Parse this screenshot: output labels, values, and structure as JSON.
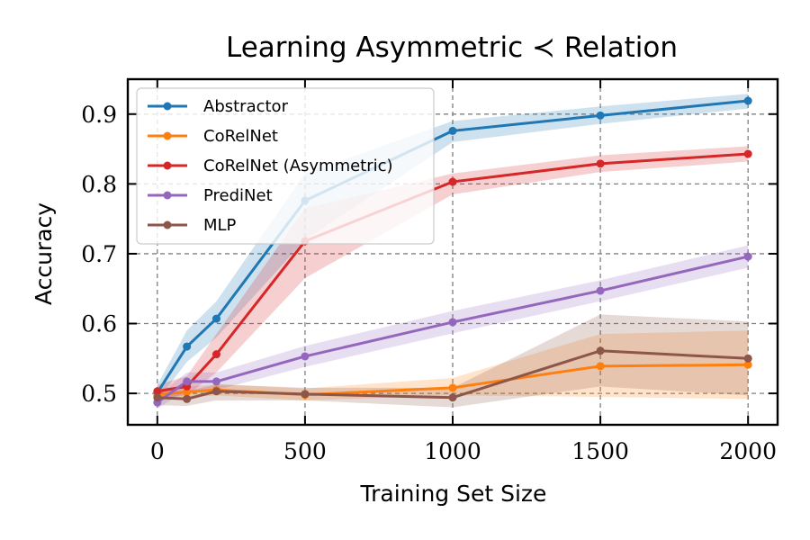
{
  "chart_data": {
    "type": "line",
    "title": "Learning Asymmetric ≺ Relation",
    "xlabel": "Training Set Size",
    "ylabel": "Accuracy",
    "xlim": [
      -100,
      2100
    ],
    "ylim": [
      0.455,
      0.95
    ],
    "xticks": [
      0,
      500,
      1000,
      1500,
      2000
    ],
    "xtick_labels": [
      "0",
      "500",
      "1000",
      "1500",
      "2000"
    ],
    "yticks": [
      0.5,
      0.6,
      0.7,
      0.8,
      0.9
    ],
    "ytick_labels": [
      "0.5",
      "0.6",
      "0.7",
      "0.8",
      "0.9"
    ],
    "grid": true,
    "legend_position": "top-left",
    "x": [
      0,
      100,
      200,
      500,
      1000,
      1500,
      2000
    ],
    "series": [
      {
        "name": "Abstractor",
        "color": "#1f77b4",
        "values": [
          0.501,
          0.567,
          0.607,
          0.776,
          0.876,
          0.898,
          0.919
        ],
        "lower": [
          0.49,
          0.545,
          0.58,
          0.72,
          0.86,
          0.886,
          0.908
        ],
        "upper": [
          0.512,
          0.59,
          0.632,
          0.815,
          0.89,
          0.911,
          0.929
        ]
      },
      {
        "name": "CoRelNet",
        "color": "#ff7f0e",
        "values": [
          0.498,
          0.502,
          0.505,
          0.498,
          0.508,
          0.539,
          0.541
        ],
        "lower": [
          0.49,
          0.494,
          0.497,
          0.49,
          0.497,
          0.495,
          0.492
        ],
        "upper": [
          0.507,
          0.51,
          0.513,
          0.507,
          0.522,
          0.585,
          0.59
        ]
      },
      {
        "name": "CoRelNet (Asymmetric)",
        "color": "#d62728",
        "values": [
          0.503,
          0.51,
          0.556,
          0.718,
          0.803,
          0.829,
          0.843
        ],
        "lower": [
          0.493,
          0.497,
          0.53,
          0.665,
          0.785,
          0.817,
          0.832
        ],
        "upper": [
          0.512,
          0.525,
          0.585,
          0.765,
          0.815,
          0.841,
          0.854
        ]
      },
      {
        "name": "PrediNet",
        "color": "#9467bd",
        "values": [
          0.487,
          0.517,
          0.517,
          0.553,
          0.602,
          0.647,
          0.696
        ],
        "lower": [
          0.478,
          0.505,
          0.505,
          0.538,
          0.586,
          0.632,
          0.68
        ],
        "upper": [
          0.497,
          0.53,
          0.53,
          0.568,
          0.618,
          0.662,
          0.712
        ]
      },
      {
        "name": "MLP",
        "color": "#8c564b",
        "values": [
          0.494,
          0.492,
          0.503,
          0.499,
          0.494,
          0.561,
          0.55
        ],
        "lower": [
          0.483,
          0.482,
          0.49,
          0.49,
          0.48,
          0.51,
          0.497
        ],
        "upper": [
          0.505,
          0.503,
          0.513,
          0.508,
          0.508,
          0.613,
          0.603
        ]
      }
    ]
  }
}
